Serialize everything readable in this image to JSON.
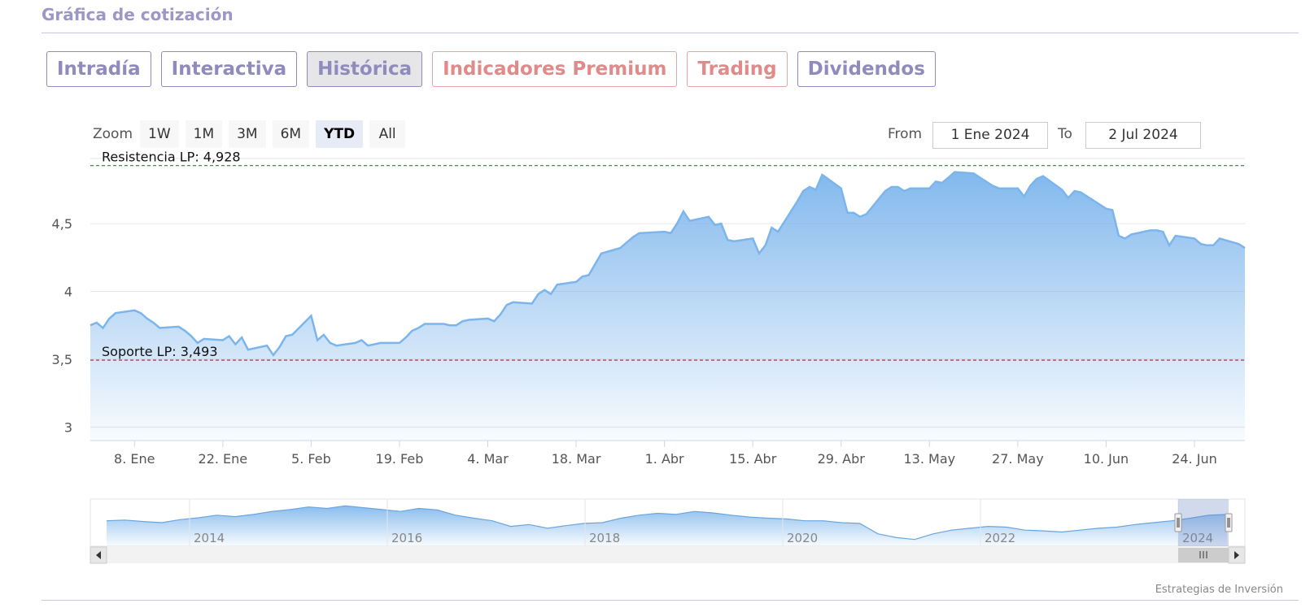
{
  "section": {
    "title": "Gráfica de cotización"
  },
  "tabs": [
    {
      "label": "Intradía",
      "style": "purple",
      "active": false
    },
    {
      "label": "Interactiva",
      "style": "purple",
      "active": false
    },
    {
      "label": "Histórica",
      "style": "purple",
      "active": true
    },
    {
      "label": "Indicadores Premium",
      "style": "red",
      "active": false
    },
    {
      "label": "Trading",
      "style": "red",
      "active": false
    },
    {
      "label": "Dividendos",
      "style": "purple",
      "active": false
    }
  ],
  "range_selector": {
    "zoom_label": "Zoom",
    "buttons": [
      "1W",
      "1M",
      "3M",
      "6M",
      "YTD",
      "All"
    ],
    "selected": "YTD",
    "from_label": "From",
    "from_value": "1 Ene 2024",
    "to_label": "To",
    "to_value": "2 Jul 2024"
  },
  "credits": "Estrategias de Inversión",
  "colors": {
    "series_line": "#7cb5ec",
    "resistance": "#2e7d32",
    "support": "#b71c1c",
    "tab_purple": "#8f8bbd",
    "tab_red": "#e08a8a"
  },
  "chart_data": {
    "type": "area",
    "title": "",
    "xlabel": "",
    "ylabel": "",
    "ylim": [
      2.9,
      4.98
    ],
    "yticks": [
      {
        "value": 3,
        "label": "3"
      },
      {
        "value": 3.5,
        "label": "3,5"
      },
      {
        "value": 4,
        "label": "4"
      },
      {
        "value": 4.5,
        "label": "4,5"
      }
    ],
    "xlim": [
      "2024-01-01",
      "2024-07-02"
    ],
    "xticks": [
      {
        "date": "2024-01-08",
        "label": "8. Ene"
      },
      {
        "date": "2024-01-22",
        "label": "22. Ene"
      },
      {
        "date": "2024-02-05",
        "label": "5. Feb"
      },
      {
        "date": "2024-02-19",
        "label": "19. Feb"
      },
      {
        "date": "2024-03-04",
        "label": "4. Mar"
      },
      {
        "date": "2024-03-18",
        "label": "18. Mar"
      },
      {
        "date": "2024-04-01",
        "label": "1. Abr"
      },
      {
        "date": "2024-04-15",
        "label": "15. Abr"
      },
      {
        "date": "2024-04-29",
        "label": "29. Abr"
      },
      {
        "date": "2024-05-13",
        "label": "13. May"
      },
      {
        "date": "2024-05-27",
        "label": "27. May"
      },
      {
        "date": "2024-06-10",
        "label": "10. Jun"
      },
      {
        "date": "2024-06-24",
        "label": "24. Jun"
      }
    ],
    "grid": true,
    "series": [
      {
        "points": [
          [
            "2024-01-01",
            3.75
          ],
          [
            "2024-01-02",
            3.77
          ],
          [
            "2024-01-03",
            3.73
          ],
          [
            "2024-01-04",
            3.8
          ],
          [
            "2024-01-05",
            3.84
          ],
          [
            "2024-01-08",
            3.86
          ],
          [
            "2024-01-09",
            3.84
          ],
          [
            "2024-01-10",
            3.8
          ],
          [
            "2024-01-11",
            3.77
          ],
          [
            "2024-01-12",
            3.73
          ],
          [
            "2024-01-15",
            3.74
          ],
          [
            "2024-01-16",
            3.71
          ],
          [
            "2024-01-17",
            3.67
          ],
          [
            "2024-01-18",
            3.62
          ],
          [
            "2024-01-19",
            3.65
          ],
          [
            "2024-01-22",
            3.64
          ],
          [
            "2024-01-23",
            3.67
          ],
          [
            "2024-01-24",
            3.61
          ],
          [
            "2024-01-25",
            3.66
          ],
          [
            "2024-01-26",
            3.57
          ],
          [
            "2024-01-29",
            3.6
          ],
          [
            "2024-01-30",
            3.53
          ],
          [
            "2024-01-31",
            3.59
          ],
          [
            "2024-02-01",
            3.67
          ],
          [
            "2024-02-02",
            3.68
          ],
          [
            "2024-02-05",
            3.82
          ],
          [
            "2024-02-06",
            3.64
          ],
          [
            "2024-02-07",
            3.68
          ],
          [
            "2024-02-08",
            3.62
          ],
          [
            "2024-02-09",
            3.6
          ],
          [
            "2024-02-12",
            3.62
          ],
          [
            "2024-02-13",
            3.64
          ],
          [
            "2024-02-14",
            3.6
          ],
          [
            "2024-02-15",
            3.61
          ],
          [
            "2024-02-16",
            3.62
          ],
          [
            "2024-02-19",
            3.62
          ],
          [
            "2024-02-20",
            3.66
          ],
          [
            "2024-02-21",
            3.71
          ],
          [
            "2024-02-22",
            3.73
          ],
          [
            "2024-02-23",
            3.76
          ],
          [
            "2024-02-26",
            3.76
          ],
          [
            "2024-02-27",
            3.75
          ],
          [
            "2024-02-28",
            3.75
          ],
          [
            "2024-02-29",
            3.78
          ],
          [
            "2024-03-01",
            3.79
          ],
          [
            "2024-03-04",
            3.8
          ],
          [
            "2024-03-05",
            3.78
          ],
          [
            "2024-03-06",
            3.83
          ],
          [
            "2024-03-07",
            3.9
          ],
          [
            "2024-03-08",
            3.92
          ],
          [
            "2024-03-11",
            3.91
          ],
          [
            "2024-03-12",
            3.98
          ],
          [
            "2024-03-13",
            4.01
          ],
          [
            "2024-03-14",
            3.98
          ],
          [
            "2024-03-15",
            4.05
          ],
          [
            "2024-03-18",
            4.07
          ],
          [
            "2024-03-19",
            4.11
          ],
          [
            "2024-03-20",
            4.12
          ],
          [
            "2024-03-21",
            4.2
          ],
          [
            "2024-03-22",
            4.28
          ],
          [
            "2024-03-25",
            4.32
          ],
          [
            "2024-03-26",
            4.36
          ],
          [
            "2024-03-27",
            4.4
          ],
          [
            "2024-03-28",
            4.43
          ],
          [
            "2024-04-01",
            4.44
          ],
          [
            "2024-04-02",
            4.43
          ],
          [
            "2024-04-03",
            4.5
          ],
          [
            "2024-04-04",
            4.59
          ],
          [
            "2024-04-05",
            4.52
          ],
          [
            "2024-04-08",
            4.55
          ],
          [
            "2024-04-09",
            4.49
          ],
          [
            "2024-04-10",
            4.5
          ],
          [
            "2024-04-11",
            4.38
          ],
          [
            "2024-04-12",
            4.37
          ],
          [
            "2024-04-15",
            4.39
          ],
          [
            "2024-04-16",
            4.28
          ],
          [
            "2024-04-17",
            4.34
          ],
          [
            "2024-04-18",
            4.47
          ],
          [
            "2024-04-19",
            4.44
          ],
          [
            "2024-04-22",
            4.66
          ],
          [
            "2024-04-23",
            4.74
          ],
          [
            "2024-04-24",
            4.77
          ],
          [
            "2024-04-25",
            4.75
          ],
          [
            "2024-04-26",
            4.86
          ],
          [
            "2024-04-29",
            4.76
          ],
          [
            "2024-04-30",
            4.58
          ],
          [
            "2024-05-01",
            4.58
          ],
          [
            "2024-05-02",
            4.55
          ],
          [
            "2024-05-03",
            4.57
          ],
          [
            "2024-05-06",
            4.74
          ],
          [
            "2024-05-07",
            4.77
          ],
          [
            "2024-05-08",
            4.77
          ],
          [
            "2024-05-09",
            4.74
          ],
          [
            "2024-05-10",
            4.76
          ],
          [
            "2024-05-13",
            4.76
          ],
          [
            "2024-05-14",
            4.81
          ],
          [
            "2024-05-15",
            4.8
          ],
          [
            "2024-05-16",
            4.84
          ],
          [
            "2024-05-17",
            4.88
          ],
          [
            "2024-05-20",
            4.87
          ],
          [
            "2024-05-21",
            4.84
          ],
          [
            "2024-05-22",
            4.81
          ],
          [
            "2024-05-23",
            4.78
          ],
          [
            "2024-05-24",
            4.76
          ],
          [
            "2024-05-27",
            4.76
          ],
          [
            "2024-05-28",
            4.7
          ],
          [
            "2024-05-29",
            4.78
          ],
          [
            "2024-05-30",
            4.83
          ],
          [
            "2024-05-31",
            4.85
          ],
          [
            "2024-06-03",
            4.75
          ],
          [
            "2024-06-04",
            4.69
          ],
          [
            "2024-06-05",
            4.74
          ],
          [
            "2024-06-06",
            4.73
          ],
          [
            "2024-06-07",
            4.7
          ],
          [
            "2024-06-10",
            4.61
          ],
          [
            "2024-06-11",
            4.6
          ],
          [
            "2024-06-12",
            4.41
          ],
          [
            "2024-06-13",
            4.39
          ],
          [
            "2024-06-14",
            4.42
          ],
          [
            "2024-06-17",
            4.45
          ],
          [
            "2024-06-18",
            4.45
          ],
          [
            "2024-06-19",
            4.44
          ],
          [
            "2024-06-20",
            4.34
          ],
          [
            "2024-06-21",
            4.41
          ],
          [
            "2024-06-24",
            4.39
          ],
          [
            "2024-06-25",
            4.35
          ],
          [
            "2024-06-26",
            4.34
          ],
          [
            "2024-06-27",
            4.34
          ],
          [
            "2024-06-28",
            4.39
          ],
          [
            "2024-07-01",
            4.35
          ],
          [
            "2024-07-02",
            4.32
          ]
        ]
      }
    ],
    "annotations": [
      {
        "type": "hline",
        "value": 4.928,
        "label": "Resistencia LP: 4,928",
        "style": "dashed",
        "color": "#2e7d32"
      },
      {
        "type": "hline",
        "value": 3.493,
        "label": "Soporte LP: 3,493",
        "style": "dashed",
        "color": "#b71c1c"
      }
    ],
    "navigator": {
      "xticks": [
        "2014",
        "2016",
        "2018",
        "2020",
        "2022",
        "2024"
      ],
      "profile": [
        0.55,
        0.57,
        0.53,
        0.5,
        0.58,
        0.63,
        0.7,
        0.66,
        0.72,
        0.8,
        0.85,
        0.92,
        0.88,
        0.95,
        0.9,
        0.85,
        0.8,
        0.88,
        0.84,
        0.7,
        0.62,
        0.55,
        0.4,
        0.45,
        0.35,
        0.42,
        0.48,
        0.5,
        0.62,
        0.7,
        0.75,
        0.72,
        0.8,
        0.76,
        0.7,
        0.65,
        0.62,
        0.6,
        0.55,
        0.55,
        0.5,
        0.48,
        0.2,
        0.1,
        0.05,
        0.2,
        0.3,
        0.35,
        0.4,
        0.38,
        0.3,
        0.28,
        0.25,
        0.3,
        0.35,
        0.38,
        0.45,
        0.5,
        0.55,
        0.62,
        0.7,
        0.72
      ]
    }
  }
}
